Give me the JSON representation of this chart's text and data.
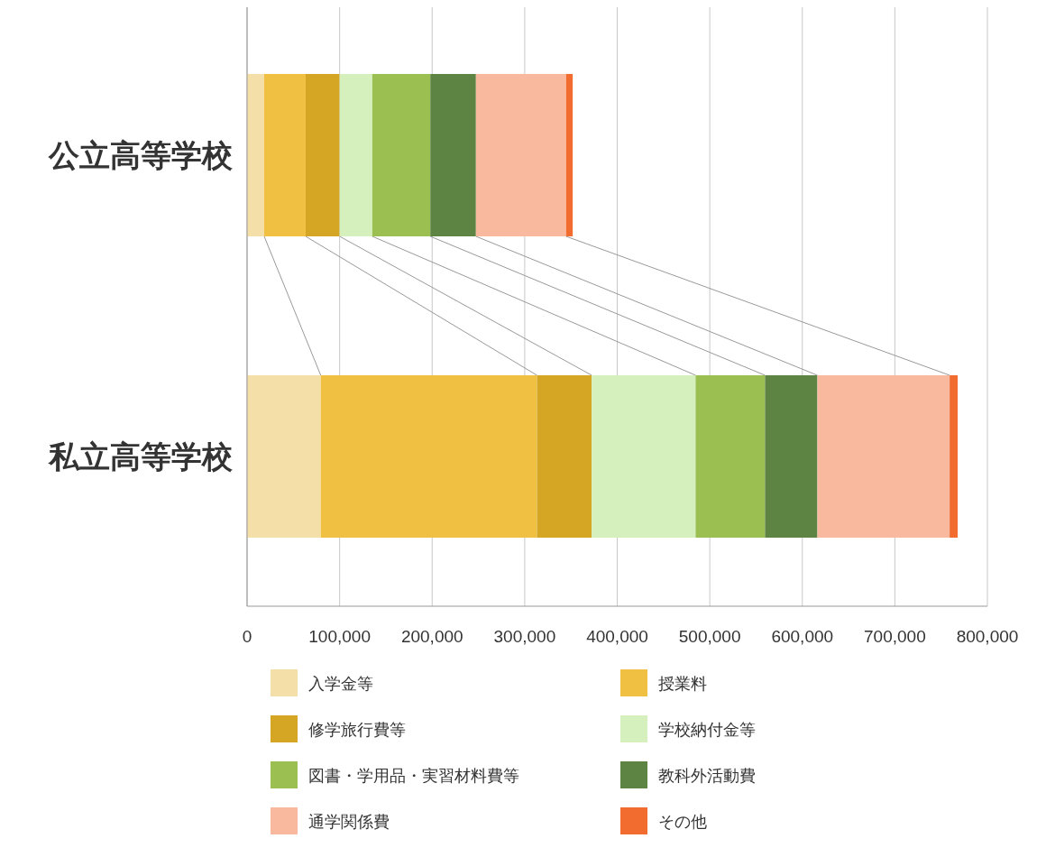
{
  "chart_data": {
    "type": "bar",
    "orientation": "horizontal",
    "stacked": true,
    "categories": [
      "公立高等学校",
      "私立高等学校"
    ],
    "series": [
      {
        "name": "入学金等",
        "color": "#f5dfa8",
        "values": [
          18500,
          79600
        ]
      },
      {
        "name": "授業料",
        "color": "#f0c042",
        "values": [
          44800,
          233700
        ]
      },
      {
        "name": "修学旅行費等",
        "color": "#d4a623",
        "values": [
          36700,
          59100
        ]
      },
      {
        "name": "学校納付金等",
        "color": "#d5f0bd",
        "values": [
          35300,
          112300
        ]
      },
      {
        "name": "図書・学用品・実習材料費等",
        "color": "#9bbf50",
        "values": [
          62700,
          75000
        ]
      },
      {
        "name": "教科外活動費",
        "color": "#5e8444",
        "values": [
          49300,
          56600
        ]
      },
      {
        "name": "通学関係費",
        "color": "#f9b99f",
        "values": [
          97400,
          142900
        ]
      },
      {
        "name": "その他",
        "color": "#f26c30",
        "values": [
          7200,
          8700
        ]
      }
    ],
    "xlim": [
      0,
      800000
    ],
    "xticks": [
      0,
      {
        "value": 100000,
        "label": "100,000"
      },
      {
        "value": 200000,
        "label": "200,000"
      },
      {
        "value": 300000,
        "label": "300,000"
      },
      {
        "value": 400000,
        "label": "400,000"
      },
      {
        "value": 500000,
        "label": "500,000"
      },
      {
        "value": 600000,
        "label": "600,000"
      },
      {
        "value": 700000,
        "label": "700,000"
      },
      {
        "value": 800000,
        "label": "800,000"
      }
    ],
    "grid": "x",
    "legend": "bottom"
  }
}
